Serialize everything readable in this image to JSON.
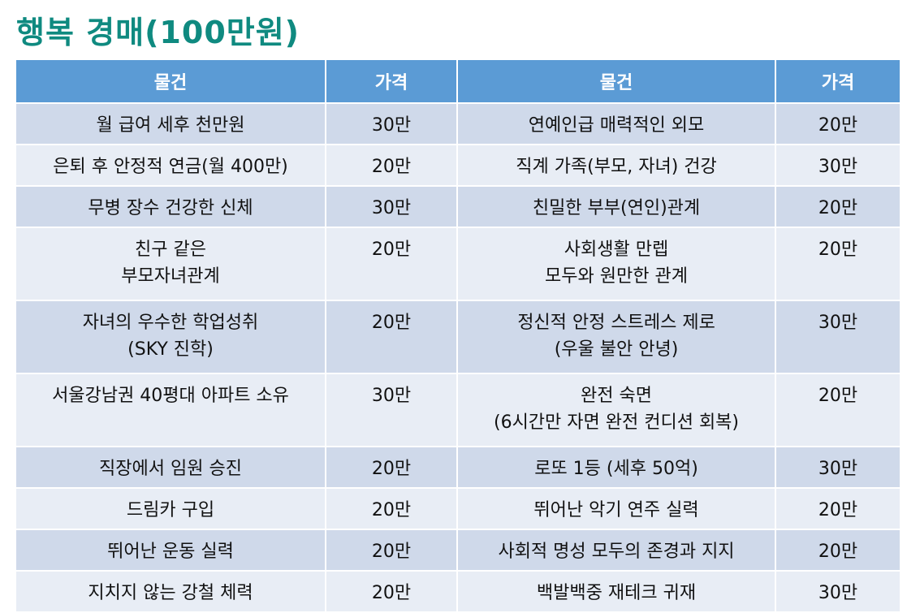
{
  "title": "행복 경매(100만원)",
  "table": {
    "headers": [
      "물건",
      "가격",
      "물건",
      "가격"
    ],
    "rows": [
      {
        "item1": "월 급여 세후 천만원",
        "price1": "30만",
        "item2": "연예인급 매력적인 외모",
        "price2": "20만"
      },
      {
        "item1": "은퇴 후 안정적 연금(월 400만)",
        "price1": "20만",
        "item2": "직계 가족(부모, 자녀) 건강",
        "price2": "30만"
      },
      {
        "item1": "무병 장수 건강한 신체",
        "price1": "30만",
        "item2": "친밀한 부부(연인)관계",
        "price2": "20만"
      },
      {
        "item1": "친구 같은\n부모자녀관계",
        "price1": "20만",
        "item2": "사회생활 만렙\n모두와 원만한 관계",
        "price2": "20만"
      },
      {
        "item1": "자녀의 우수한 학업성취\n(SKY 진학)",
        "price1": "20만",
        "item2": "정신적 안정 스트레스 제로\n(우울 불안 안녕)",
        "price2": "30만"
      },
      {
        "item1": "서울강남권 40평대 아파트 소유",
        "price1": "30만",
        "item2": "완전 숙면\n(6시간만 자면 완전 컨디션 회복)",
        "price2": "20만"
      },
      {
        "item1": "직장에서 임원 승진",
        "price1": "20만",
        "item2": "로또 1등 (세후 50억)",
        "price2": "30만"
      },
      {
        "item1": "드림카 구입",
        "price1": "20만",
        "item2": "뛰어난 악기 연주 실력",
        "price2": "20만"
      },
      {
        "item1": "뛰어난 운동 실력",
        "price1": "20만",
        "item2": "사회적 명성 모두의 존경과 지지",
        "price2": "20만"
      },
      {
        "item1": "지치지 않는 강철 체력",
        "price1": "20만",
        "item2": "백발백중 재테크 귀재",
        "price2": "30만"
      }
    ]
  }
}
